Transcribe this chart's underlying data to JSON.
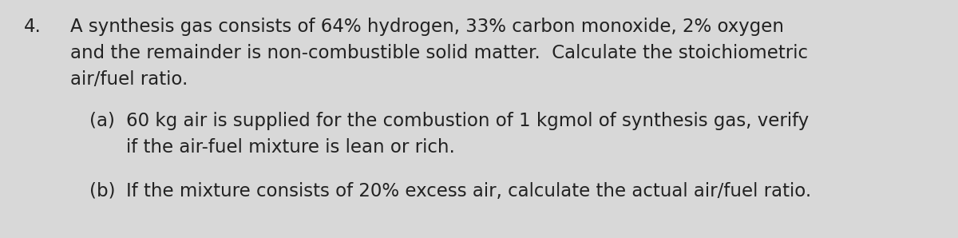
{
  "background_color": "#d8d8d8",
  "text_color": "#222222",
  "number": "4.",
  "line1": "A synthesis gas consists of 64% hydrogen, 33% carbon monoxide, 2% oxygen",
  "line2": "and the remainder is non-combustible solid matter.  Calculate the stoichiometric",
  "line3": "air/fuel ratio.",
  "part_a_label": "(a)",
  "part_a_line1": "60 kg air is supplied for the combustion of 1 kgmol of synthesis gas, verify",
  "part_a_line2": "if the air-fuel mixture is lean or rich.",
  "part_b_label": "(b)",
  "part_b_line1": "If the mixture consists of 20% excess air, calculate the actual air/fuel ratio.",
  "font_size_main": 16.5,
  "font_family": "DejaVu Sans"
}
